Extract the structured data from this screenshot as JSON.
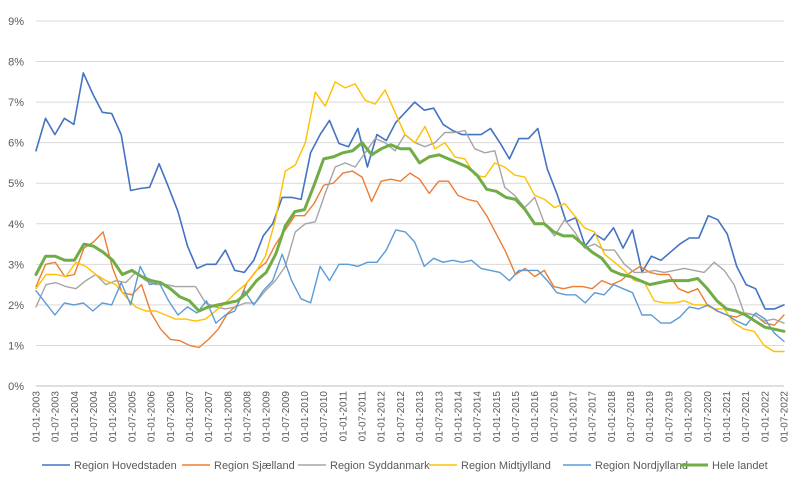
{
  "chart_data": {
    "type": "line",
    "title": "",
    "xlabel": "",
    "ylabel": "",
    "ylim": [
      0,
      9
    ],
    "yticks": [
      "0%",
      "1%",
      "2%",
      "3%",
      "4%",
      "5%",
      "6%",
      "7%",
      "8%",
      "9%"
    ],
    "grid": "horizontal",
    "legend_position": "bottom",
    "x_tick_labels": [
      "01-01-2003",
      "01-07-2003",
      "01-01-2004",
      "01-07-2004",
      "01-01-2005",
      "01-07-2005",
      "01-01-2006",
      "01-07-2006",
      "01-01-2007",
      "01-07-2007",
      "01-01-2008",
      "01-07-2008",
      "01-01-2009",
      "01-07-2009",
      "01-01-2010",
      "01-07-2010",
      "01-01-2011",
      "01-07-2011",
      "01-01-2012",
      "01-07-2012",
      "01-01-2013",
      "01-07-2013",
      "01-01-2014",
      "01-07-2014",
      "01-01-2015",
      "01-07-2015",
      "01-01-2016",
      "01-07-2016",
      "01-01-2017",
      "01-07-2017",
      "01-01-2018",
      "01-07-2018",
      "01-01-2019",
      "01-07-2019",
      "01-01-2020",
      "01-07-2020",
      "01-01-2021",
      "01-07-2021",
      "01-01-2022",
      "01-07-2022"
    ],
    "series": [
      {
        "name": "Region Hovedstaden",
        "color": "#4472C4",
        "width": 1.6,
        "values": [
          5.8,
          6.6,
          6.2,
          6.6,
          6.45,
          7.72,
          7.2,
          6.75,
          6.72,
          6.2,
          4.82,
          4.87,
          4.9,
          5.48,
          4.9,
          4.3,
          3.45,
          2.9,
          3.0,
          3.0,
          3.35,
          2.85,
          2.8,
          3.1,
          3.7,
          4.0,
          4.65,
          4.65,
          4.6,
          5.75,
          6.2,
          6.55,
          5.98,
          5.9,
          6.35,
          5.4,
          6.2,
          6.05,
          6.5,
          6.75,
          7.0,
          6.8,
          6.85,
          6.45,
          6.3,
          6.2,
          6.2,
          6.2,
          6.35,
          6.0,
          5.6,
          6.1,
          6.1,
          6.35,
          5.35,
          4.75,
          4.05,
          4.15,
          3.45,
          3.75,
          3.6,
          3.9,
          3.4,
          3.85,
          2.8,
          3.2,
          3.1,
          3.3,
          3.5,
          3.65,
          3.65,
          4.2,
          4.1,
          3.75,
          2.95,
          2.5,
          2.4,
          1.9,
          1.9,
          2.0
        ]
      },
      {
        "name": "Region Sjælland",
        "color": "#ED7D31",
        "width": 1.4,
        "values": [
          2.45,
          3.0,
          3.05,
          2.7,
          2.75,
          3.4,
          3.55,
          3.8,
          2.9,
          2.3,
          2.25,
          2.5,
          1.8,
          1.4,
          1.15,
          1.12,
          1.0,
          0.95,
          1.15,
          1.4,
          1.8,
          2.0,
          2.55,
          2.85,
          3.05,
          3.5,
          3.85,
          4.2,
          4.2,
          4.5,
          4.95,
          5.0,
          5.25,
          5.3,
          5.15,
          4.55,
          5.05,
          5.1,
          5.05,
          5.25,
          5.1,
          4.75,
          5.05,
          5.05,
          4.7,
          4.6,
          4.55,
          4.2,
          3.75,
          3.3,
          2.75,
          2.9,
          2.7,
          2.85,
          2.45,
          2.4,
          2.45,
          2.45,
          2.4,
          2.6,
          2.5,
          2.6,
          2.8,
          2.95,
          2.8,
          2.75,
          2.75,
          2.4,
          2.3,
          2.4,
          2.0,
          1.85,
          1.75,
          1.7,
          1.8,
          1.75,
          1.55,
          1.5,
          1.75
        ]
      },
      {
        "name": "Region Syddanmark",
        "color": "#A5A5A5",
        "width": 1.4,
        "values": [
          1.95,
          2.5,
          2.55,
          2.45,
          2.4,
          2.6,
          2.75,
          2.5,
          2.6,
          2.55,
          2.8,
          2.6,
          2.5,
          2.5,
          2.45,
          2.45,
          2.45,
          2.05,
          1.95,
          1.9,
          1.95,
          2.05,
          2.05,
          2.35,
          2.6,
          2.95,
          3.8,
          4.0,
          4.05,
          4.75,
          5.4,
          5.5,
          5.4,
          5.75,
          6.1,
          6.0,
          5.8,
          6.2,
          6.0,
          5.9,
          6.0,
          6.25,
          6.25,
          6.3,
          5.85,
          5.75,
          5.8,
          4.9,
          4.7,
          4.4,
          4.65,
          4.0,
          3.7,
          4.1,
          3.8,
          3.4,
          3.5,
          3.35,
          3.35,
          3.0,
          2.8,
          2.8,
          2.85,
          2.8,
          2.85,
          2.9,
          2.85,
          2.8,
          3.05,
          2.85,
          2.5,
          1.8,
          1.75,
          1.6,
          1.65,
          1.55
        ]
      },
      {
        "name": "Region Midtjylland",
        "color": "#FFC000",
        "width": 1.4,
        "values": [
          2.4,
          2.75,
          2.75,
          2.7,
          3.05,
          2.95,
          2.75,
          2.6,
          2.5,
          2.2,
          1.95,
          1.85,
          1.85,
          1.75,
          1.65,
          1.65,
          1.6,
          1.65,
          1.85,
          2.05,
          2.3,
          2.5,
          2.8,
          3.2,
          4.1,
          5.3,
          5.45,
          6.0,
          7.25,
          6.9,
          7.5,
          7.35,
          7.45,
          7.05,
          6.95,
          7.3,
          6.75,
          6.2,
          6.0,
          6.4,
          5.85,
          6.0,
          5.65,
          5.6,
          5.2,
          5.15,
          5.5,
          5.4,
          5.2,
          5.15,
          4.7,
          4.6,
          4.4,
          4.5,
          4.2,
          3.9,
          3.8,
          3.25,
          3.05,
          2.85,
          2.6,
          2.55,
          2.1,
          2.05,
          2.05,
          2.1,
          2.0,
          2.0,
          1.9,
          1.9,
          1.55,
          1.4,
          1.35,
          1.0,
          0.85,
          0.85
        ]
      },
      {
        "name": "Region Nordjylland",
        "color": "#5B9BD5",
        "width": 1.4,
        "values": [
          2.35,
          2.05,
          1.75,
          2.05,
          2.0,
          2.05,
          1.85,
          2.05,
          2.0,
          2.55,
          2.0,
          2.95,
          2.5,
          2.55,
          2.1,
          1.75,
          1.95,
          1.8,
          2.1,
          1.55,
          1.75,
          1.85,
          2.35,
          2.0,
          2.35,
          2.6,
          3.25,
          2.6,
          2.15,
          2.05,
          2.95,
          2.6,
          3.0,
          3.0,
          2.95,
          3.05,
          3.05,
          3.35,
          3.85,
          3.8,
          3.55,
          2.95,
          3.15,
          3.05,
          3.1,
          3.05,
          3.1,
          2.9,
          2.85,
          2.8,
          2.6,
          2.85,
          2.85,
          2.85,
          2.6,
          2.3,
          2.25,
          2.25,
          2.05,
          2.3,
          2.25,
          2.5,
          2.4,
          2.3,
          1.75,
          1.75,
          1.55,
          1.55,
          1.7,
          1.95,
          1.9,
          2.0,
          1.85,
          1.75,
          1.6,
          1.5,
          1.8,
          1.65,
          1.3,
          1.1
        ]
      },
      {
        "name": "Hele landet",
        "color": "#70AD47",
        "width": 3,
        "values": [
          2.75,
          3.2,
          3.2,
          3.1,
          3.1,
          3.5,
          3.45,
          3.3,
          3.1,
          2.75,
          2.85,
          2.7,
          2.6,
          2.55,
          2.4,
          2.2,
          2.1,
          1.85,
          1.95,
          2.0,
          2.05,
          2.1,
          2.3,
          2.6,
          2.8,
          3.25,
          3.95,
          4.3,
          4.35,
          4.95,
          5.6,
          5.65,
          5.75,
          5.8,
          6.0,
          5.7,
          5.85,
          5.95,
          5.85,
          5.85,
          5.5,
          5.65,
          5.7,
          5.6,
          5.5,
          5.4,
          5.2,
          4.85,
          4.8,
          4.65,
          4.6,
          4.35,
          4.0,
          4.0,
          3.8,
          3.7,
          3.7,
          3.5,
          3.3,
          3.15,
          2.85,
          2.75,
          2.7,
          2.6,
          2.5,
          2.55,
          2.6,
          2.6,
          2.6,
          2.65,
          2.4,
          2.1,
          1.9,
          1.85,
          1.75,
          1.6,
          1.45,
          1.4,
          1.35
        ]
      }
    ]
  }
}
